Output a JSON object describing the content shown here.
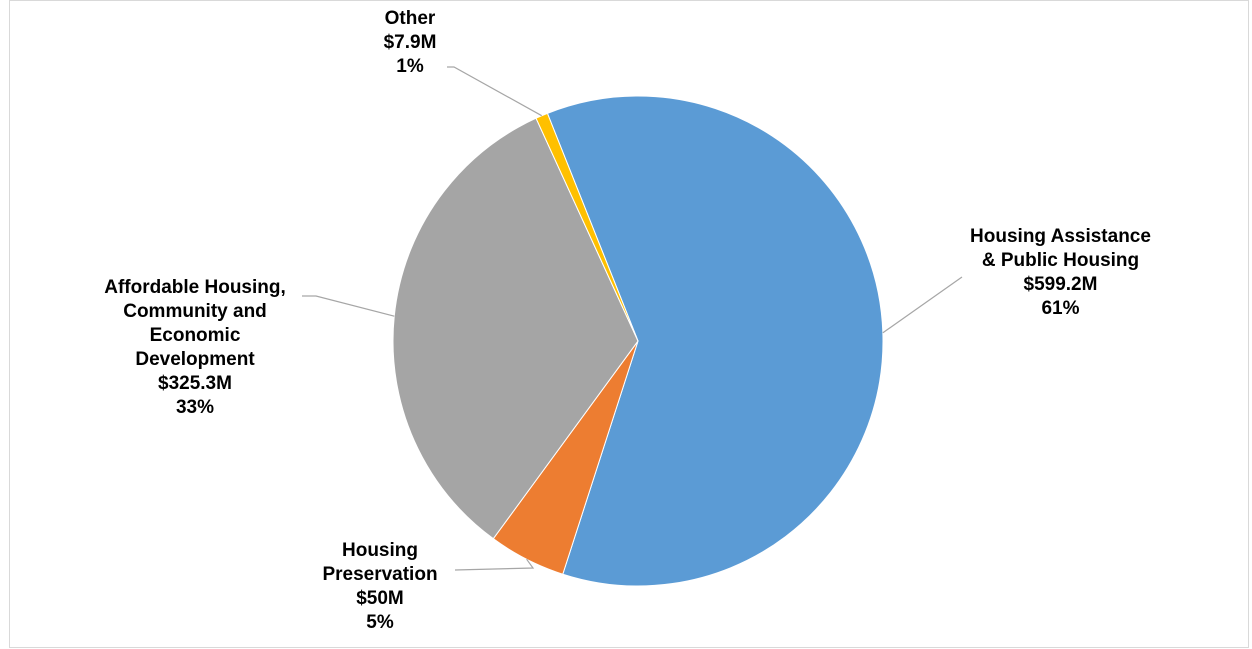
{
  "chart_data": {
    "type": "pie",
    "title": "",
    "slices": [
      {
        "name_lines": [
          "Housing Assistance",
          "& Public Housing"
        ],
        "amount": "$599.2M",
        "percent": "61%",
        "value": 599.2,
        "color": "#5b9bd5"
      },
      {
        "name_lines": [
          "Housing",
          "Preservation"
        ],
        "amount": "$50M",
        "percent": "5%",
        "value": 50,
        "color": "#ed7d31"
      },
      {
        "name_lines": [
          "Affordable Housing,",
          "Community and",
          "Economic",
          "Development"
        ],
        "amount": "$325.3M",
        "percent": "33%",
        "value": 325.3,
        "color": "#a5a5a5"
      },
      {
        "name_lines": [
          "Other"
        ],
        "amount": "$7.9M",
        "percent": "1%",
        "value": 7.9,
        "color": "#ffc000"
      }
    ],
    "legend": "none",
    "data_labels": "outside with leader lines"
  }
}
